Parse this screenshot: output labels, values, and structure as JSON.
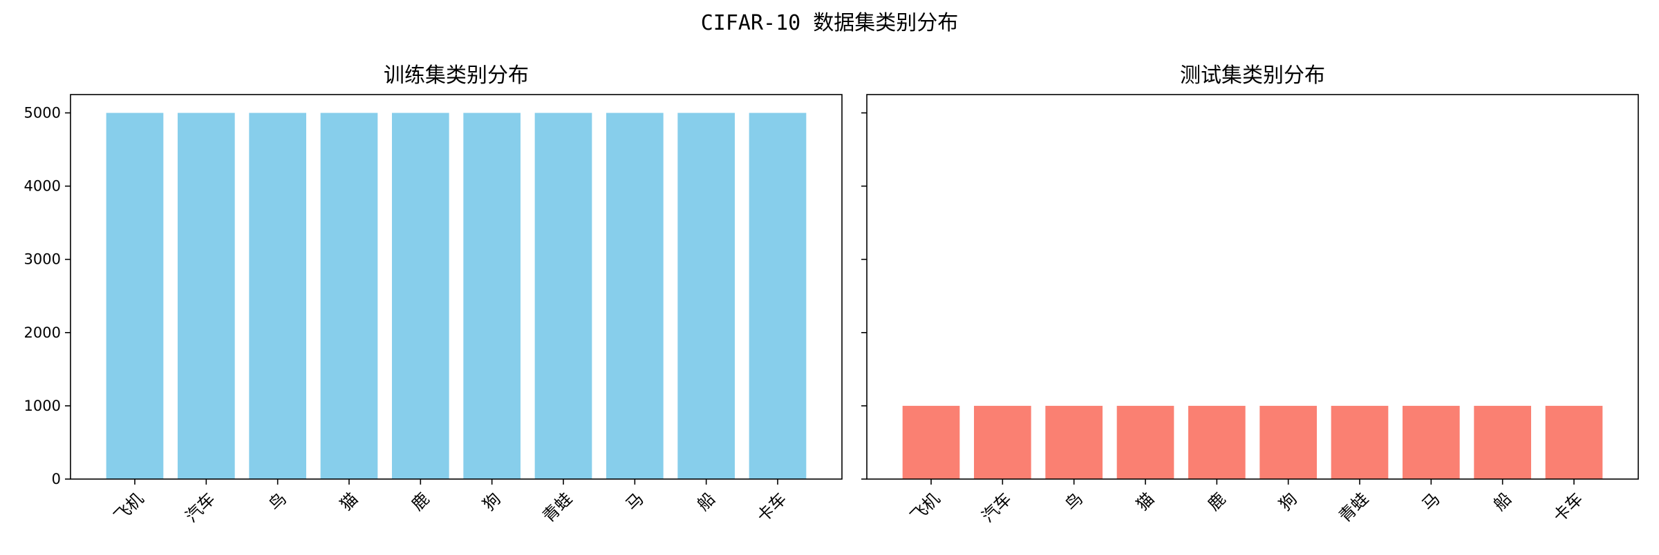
{
  "figure": {
    "title": "CIFAR-10 数据集类别分布"
  },
  "chart_data": [
    {
      "type": "bar",
      "title": "训练集类别分布",
      "categories": [
        "飞机",
        "汽车",
        "鸟",
        "猫",
        "鹿",
        "狗",
        "青蛙",
        "马",
        "船",
        "卡车"
      ],
      "values": [
        5000,
        5000,
        5000,
        5000,
        5000,
        5000,
        5000,
        5000,
        5000,
        5000
      ],
      "color": "#87CEEB",
      "ylim": [
        0,
        5250
      ],
      "yticks": [
        0,
        1000,
        2000,
        3000,
        4000,
        5000
      ],
      "grid": false,
      "xlabel": "",
      "ylabel": ""
    },
    {
      "type": "bar",
      "title": "测试集类别分布",
      "categories": [
        "飞机",
        "汽车",
        "鸟",
        "猫",
        "鹿",
        "狗",
        "青蛙",
        "马",
        "船",
        "卡车"
      ],
      "values": [
        1000,
        1000,
        1000,
        1000,
        1000,
        1000,
        1000,
        1000,
        1000,
        1000
      ],
      "color": "#FA8072",
      "ylim": [
        0,
        5250
      ],
      "yticks": [
        0,
        1000,
        2000,
        3000,
        4000,
        5000
      ],
      "grid": false,
      "xlabel": "",
      "ylabel": ""
    }
  ]
}
